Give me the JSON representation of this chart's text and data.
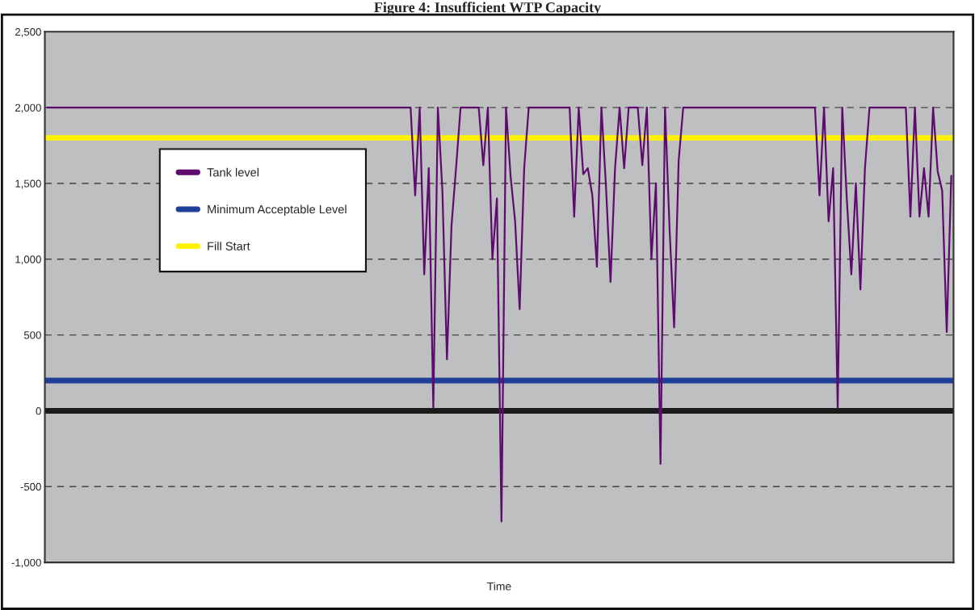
{
  "chart_data": {
    "type": "line",
    "title": "Figure 4: Insufficient WTP Capacity",
    "xlabel": "Time",
    "categories": [
      null,
      null,
      null,
      null,
      null,
      null,
      null,
      null,
      null,
      null,
      null,
      null,
      null,
      null,
      null,
      null,
      null,
      null,
      null,
      null,
      null,
      null,
      null,
      null,
      null,
      null,
      null,
      null,
      null,
      null,
      null,
      null,
      null,
      null,
      null,
      null,
      null,
      null,
      null,
      null,
      null,
      null,
      null,
      null,
      null,
      null,
      null,
      null,
      null,
      null,
      null,
      null,
      null,
      null,
      null,
      null,
      null,
      null,
      null,
      null,
      null,
      null,
      null,
      null,
      null,
      null,
      null,
      null,
      null,
      null,
      null,
      null,
      null,
      null,
      null,
      null,
      null,
      null,
      null,
      null,
      null,
      null,
      null,
      null,
      null,
      null,
      null,
      null,
      null,
      null,
      null,
      null,
      null,
      null,
      null,
      null,
      null,
      null,
      null,
      null,
      null,
      null,
      null,
      null,
      null,
      null,
      null,
      null,
      null,
      null,
      null,
      null,
      null,
      null,
      null,
      null,
      null,
      null,
      null,
      null,
      null,
      null,
      null,
      null,
      null,
      null,
      null,
      null,
      null,
      null,
      null,
      null,
      null,
      null,
      null,
      null,
      null,
      null,
      null,
      null,
      null,
      null,
      null,
      null,
      null,
      null,
      null,
      null,
      null,
      null,
      null,
      null,
      null,
      null,
      null,
      null,
      null,
      null,
      null,
      null,
      null,
      null,
      null,
      null,
      null,
      null,
      null,
      null,
      null,
      null,
      null,
      null,
      null,
      null,
      null,
      null,
      null,
      null,
      null,
      null,
      null,
      null,
      null,
      null,
      null,
      null,
      null,
      null,
      null,
      null,
      null,
      null,
      null,
      null,
      null,
      null,
      null,
      null,
      null,
      null
    ],
    "series": [
      {
        "name": "Tank level",
        "color": "#5e0a6e",
        "values": [
          2000,
          2000,
          2000,
          2000,
          2000,
          2000,
          2000,
          2000,
          2000,
          2000,
          2000,
          2000,
          2000,
          2000,
          2000,
          2000,
          2000,
          2000,
          2000,
          2000,
          2000,
          2000,
          2000,
          2000,
          2000,
          2000,
          2000,
          2000,
          2000,
          2000,
          2000,
          2000,
          2000,
          2000,
          2000,
          2000,
          2000,
          2000,
          2000,
          2000,
          2000,
          2000,
          2000,
          2000,
          2000,
          2000,
          2000,
          2000,
          2000,
          2000,
          2000,
          2000,
          2000,
          2000,
          2000,
          2000,
          2000,
          2000,
          2000,
          2000,
          2000,
          2000,
          2000,
          2000,
          2000,
          2000,
          2000,
          2000,
          2000,
          2000,
          2000,
          2000,
          2000,
          2000,
          2000,
          2000,
          2000,
          2000,
          2000,
          2000,
          2000,
          1420,
          2000,
          900,
          1600,
          20,
          2000,
          1450,
          340,
          1220,
          1600,
          2000,
          2000,
          2000,
          2000,
          2000,
          1620,
          2000,
          1000,
          1400,
          -730,
          2000,
          1550,
          1250,
          670,
          1600,
          2000,
          2000,
          2000,
          2000,
          2000,
          2000,
          2000,
          2000,
          2000,
          2000,
          1280,
          2000,
          1560,
          1600,
          1420,
          950,
          2000,
          1480,
          850,
          1600,
          2000,
          1600,
          2000,
          2000,
          2000,
          1620,
          2000,
          1000,
          1500,
          -350,
          2000,
          1200,
          550,
          1650,
          2000,
          2000,
          2000,
          2000,
          2000,
          2000,
          2000,
          2000,
          2000,
          2000,
          2000,
          2000,
          2000,
          2000,
          2000,
          2000,
          2000,
          2000,
          2000,
          2000,
          2000,
          2000,
          2000,
          2000,
          2000,
          2000,
          2000,
          2000,
          2000,
          2000,
          1420,
          2000,
          1250,
          1600,
          20,
          2000,
          1400,
          900,
          1500,
          800,
          1600,
          2000,
          2000,
          2000,
          2000,
          2000,
          2000,
          2000,
          2000,
          2000,
          1280,
          2000,
          1280,
          1600,
          1280,
          2000,
          1580,
          1450,
          520,
          1550
        ]
      }
    ],
    "ref_lines": [
      {
        "axis": "y",
        "value": 200,
        "label": "Minimum Acceptable Level",
        "color": "#1f3f99"
      },
      {
        "axis": "y",
        "value": 1800,
        "label": "Fill Start",
        "color": "#fff200"
      },
      {
        "axis": "y",
        "value": 0,
        "color": "#1a1a1a"
      }
    ],
    "ylim": [
      -1000,
      2500
    ],
    "yticks": [
      {
        "value": -1000,
        "label": "-1,000"
      },
      {
        "value": -500,
        "label": "-500"
      },
      0,
      500,
      {
        "value": 1000,
        "label": "1,000"
      },
      {
        "value": 1500,
        "label": "1,500"
      },
      {
        "value": 2000,
        "label": "2,000"
      },
      {
        "value": 2500,
        "label": "2,500"
      }
    ],
    "grid": "y",
    "legend": "top left"
  }
}
